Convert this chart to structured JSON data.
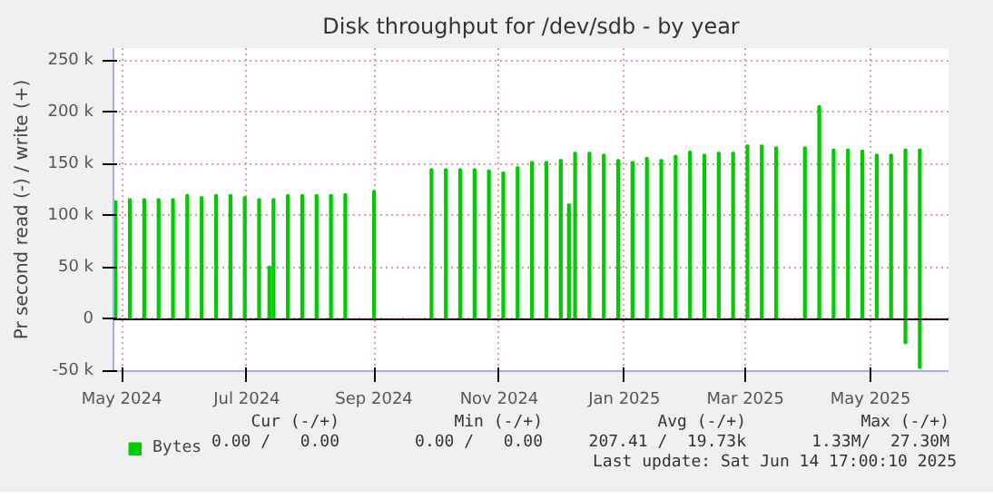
{
  "chart_data": {
    "type": "bar",
    "title": "Disk throughput for /dev/sdb - by year",
    "ylabel": "Pr second read (-) / write (+)",
    "xlim": [
      "2024-04-27",
      "2025-06-08"
    ],
    "xticks": [
      {
        "value": "2024-05-01",
        "label": "May 2024"
      },
      {
        "value": "2024-07-01",
        "label": "Jul 2024"
      },
      {
        "value": "2024-09-01",
        "label": "Sep 2024"
      },
      {
        "value": "2024-11-01",
        "label": "Nov 2024"
      },
      {
        "value": "2025-01-01",
        "label": "Jan 2025"
      },
      {
        "value": "2025-03-01",
        "label": "Mar 2025"
      },
      {
        "value": "2025-05-01",
        "label": "May 2025"
      }
    ],
    "ylim": [
      -50000,
      262000
    ],
    "yticks": [
      {
        "value": -50000,
        "label": "-50 k"
      },
      {
        "value": 0,
        "label": "0"
      },
      {
        "value": 50000,
        "label": "50 k"
      },
      {
        "value": 100000,
        "label": "100 k"
      },
      {
        "value": 150000,
        "label": "150 k"
      },
      {
        "value": 200000,
        "label": "200 k"
      },
      {
        "value": 250000,
        "label": "250 k"
      }
    ],
    "series": [
      {
        "name": "Bytes",
        "color": "#00cc00",
        "x": [
          "2024-04-28",
          "2024-05-05",
          "2024-05-12",
          "2024-05-19",
          "2024-05-26",
          "2024-06-02",
          "2024-06-09",
          "2024-06-16",
          "2024-06-23",
          "2024-06-30",
          "2024-07-07",
          "2024-07-12",
          "2024-07-14",
          "2024-07-21",
          "2024-07-28",
          "2024-08-04",
          "2024-08-11",
          "2024-08-18",
          "2024-09-01",
          "2024-09-29",
          "2024-10-06",
          "2024-10-13",
          "2024-10-20",
          "2024-10-27",
          "2024-11-03",
          "2024-11-10",
          "2024-11-17",
          "2024-11-24",
          "2024-12-01",
          "2024-12-05",
          "2024-12-08",
          "2024-12-15",
          "2024-12-22",
          "2024-12-29",
          "2025-01-05",
          "2025-01-12",
          "2025-01-19",
          "2025-01-26",
          "2025-02-02",
          "2025-02-09",
          "2025-02-16",
          "2025-02-23",
          "2025-03-02",
          "2025-03-09",
          "2025-03-16",
          "2025-03-30",
          "2025-04-06",
          "2025-04-13",
          "2025-04-20",
          "2025-04-27",
          "2025-05-04",
          "2025-05-11",
          "2025-05-18",
          "2025-05-25"
        ],
        "values": [
          114000,
          116000,
          116000,
          116000,
          116000,
          120000,
          118000,
          120000,
          120000,
          118000,
          116000,
          51000,
          116000,
          120000,
          120000,
          120000,
          120000,
          121000,
          124000,
          145000,
          145000,
          145000,
          145000,
          144000,
          142000,
          147000,
          152000,
          152000,
          154000,
          111000,
          161000,
          161000,
          159000,
          154000,
          152000,
          156000,
          154000,
          158000,
          162000,
          159000,
          161000,
          161000,
          168000,
          168000,
          166000,
          166000,
          206000,
          164000,
          164000,
          163000,
          159000,
          159000,
          164000,
          164000
        ]
      },
      {
        "color": "#00cc00",
        "x": [
          "2025-05-18",
          "2025-05-25"
        ],
        "values": [
          -23000,
          -47000
        ]
      }
    ],
    "grid": true,
    "legend": "bottom",
    "annotations": [
      "Cur (-/+)",
      "0.00 /   0.00",
      "Min (-/+)",
      "0.00 /   0.00",
      "Avg (-/+)",
      "207.41 /  19.73k",
      "Max (-/+)",
      "1.33M/  27.30M",
      "Last update: Sat Jun 14 17:00:10 2025"
    ]
  }
}
